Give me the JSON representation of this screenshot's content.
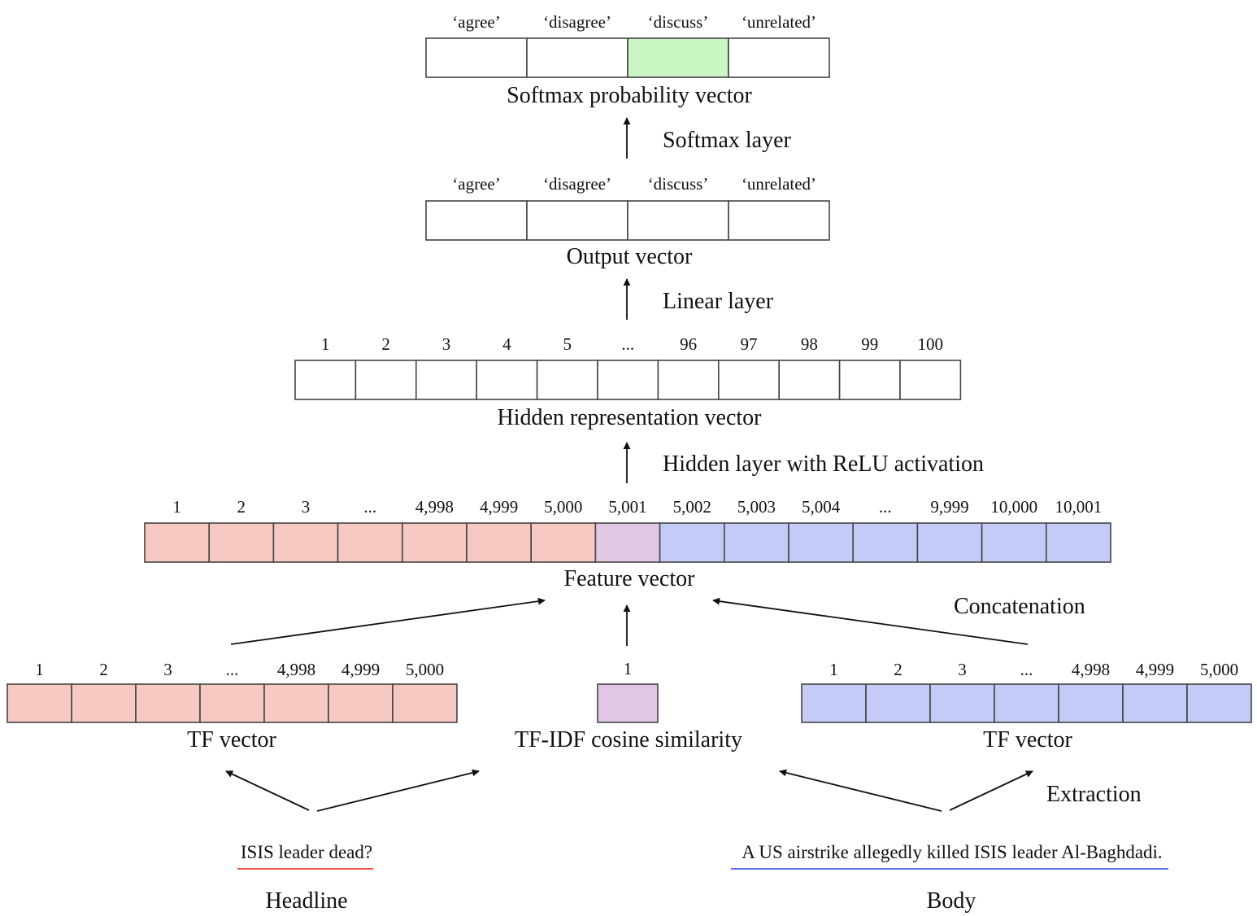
{
  "colors": {
    "headline": "#f6c9c3",
    "body": "#c3cbf6",
    "similarity": "#e0c8e4",
    "highlight": "#c9f6c3",
    "empty": "#ffffff",
    "headline_underline": "#e8553a",
    "body_underline": "#5a6fe6"
  },
  "softmax": {
    "labels": [
      "‘agree’",
      "‘disagree’",
      "‘discuss’",
      "‘unrelated’"
    ],
    "highlight_index": 2,
    "caption": "Softmax probability vector"
  },
  "softmax_layer": "Softmax layer",
  "output": {
    "labels": [
      "‘agree’",
      "‘disagree’",
      "‘discuss’",
      "‘unrelated’"
    ],
    "caption": "Output vector"
  },
  "linear_layer": "Linear layer",
  "hidden": {
    "labels": [
      "1",
      "2",
      "3",
      "4",
      "5",
      "...",
      "96",
      "97",
      "98",
      "99",
      "100"
    ],
    "caption": "Hidden representation vector"
  },
  "hidden_layer": "Hidden layer with ReLU activation",
  "feature": {
    "labels": [
      "1",
      "2",
      "3",
      "...",
      "4,998",
      "4,999",
      "5,000",
      "5,001",
      "5,002",
      "5,003",
      "5,004",
      "...",
      "9,999",
      "10,000",
      "10,001"
    ],
    "groups": [
      "headline",
      "headline",
      "headline",
      "headline",
      "headline",
      "headline",
      "headline",
      "similarity",
      "body",
      "body",
      "body",
      "body",
      "body",
      "body",
      "body"
    ],
    "caption": "Feature vector"
  },
  "concatenation": "Concatenation",
  "tf_headline": {
    "labels": [
      "1",
      "2",
      "3",
      "...",
      "4,998",
      "4,999",
      "5,000"
    ],
    "caption": "TF vector"
  },
  "cosine": {
    "labels": [
      "1"
    ],
    "caption": "TF-IDF cosine similarity"
  },
  "tf_body": {
    "labels": [
      "1",
      "2",
      "3",
      "...",
      "4,998",
      "4,999",
      "5,000"
    ],
    "caption": "TF vector"
  },
  "extraction": "Extraction",
  "headline": {
    "text": "ISIS leader dead?",
    "label": "Headline"
  },
  "body": {
    "text": "A US airstrike allegedly killed ISIS leader Al-Baghdadi.",
    "label": "Body"
  }
}
